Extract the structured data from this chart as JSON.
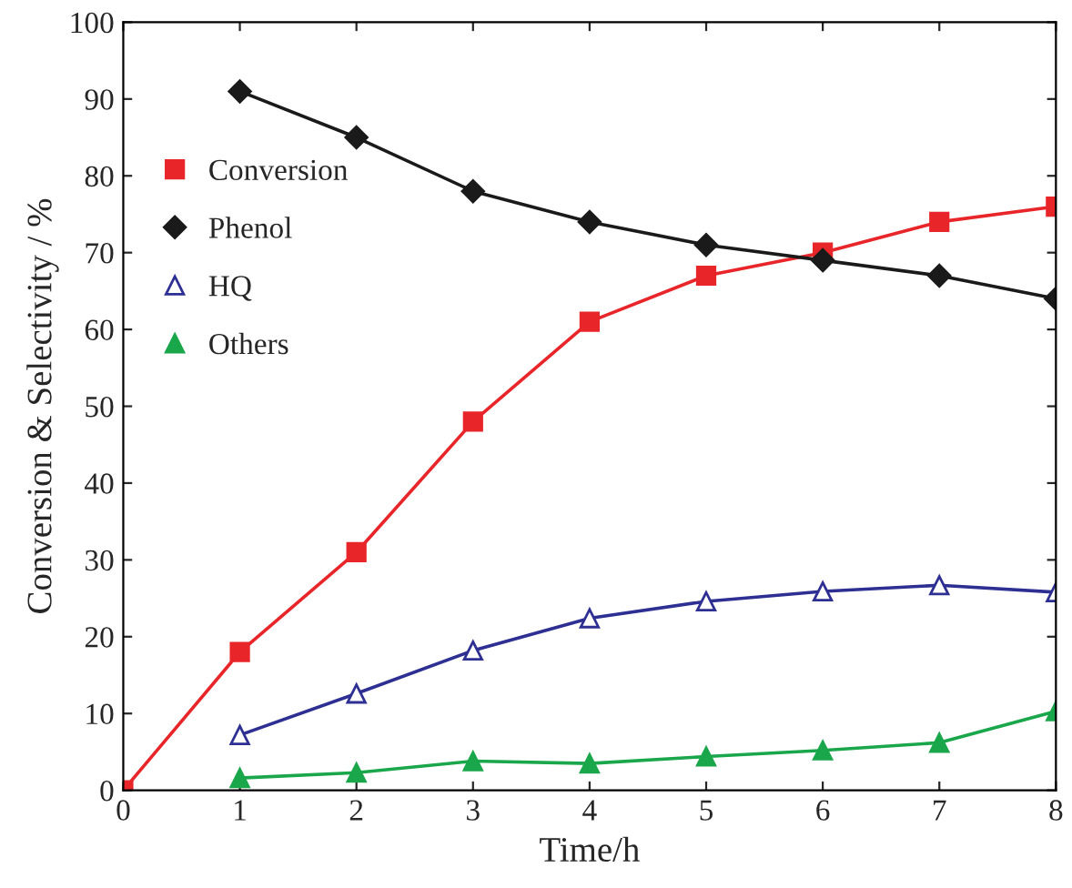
{
  "chart_data": {
    "type": "line",
    "xlabel": "Time/h",
    "ylabel": "Conversion & Selectivity / %",
    "xlim": [
      0,
      8
    ],
    "xticks": [
      0,
      1,
      2,
      3,
      4,
      5,
      6,
      7,
      8
    ],
    "ylim": [
      0,
      100
    ],
    "yticks": [
      0,
      10,
      20,
      30,
      40,
      50,
      60,
      70,
      80,
      90,
      100
    ],
    "grid": false,
    "legend": "top left",
    "line_style": "solid",
    "series": [
      {
        "name": "Conversion",
        "color": "#e8262a",
        "marker": "square",
        "x": [
          0,
          1,
          2,
          3,
          4,
          5,
          6,
          7,
          8
        ],
        "values": [
          0,
          18,
          31,
          48,
          61,
          67,
          70,
          74,
          76
        ]
      },
      {
        "name": "Phenol",
        "color": "#1a1a1a",
        "marker": "diamond",
        "x": [
          1,
          2,
          3,
          4,
          5,
          6,
          7,
          8
        ],
        "values": [
          91,
          85,
          78,
          74,
          71,
          69,
          67,
          64
        ]
      },
      {
        "name": "HQ",
        "color": "#2e2f92",
        "marker": "triangle",
        "x": [
          1,
          2,
          3,
          4,
          5,
          6,
          7,
          8
        ],
        "values": [
          7.2,
          12.6,
          18.2,
          22.4,
          24.6,
          25.9,
          26.7,
          25.8
        ]
      },
      {
        "name": "Others",
        "color": "#1aa64a",
        "marker": "triangle",
        "x": [
          1,
          2,
          3,
          4,
          5,
          6,
          7,
          8
        ],
        "values": [
          1.6,
          2.3,
          3.8,
          3.5,
          4.4,
          5.2,
          6.2,
          10.3
        ]
      }
    ]
  }
}
